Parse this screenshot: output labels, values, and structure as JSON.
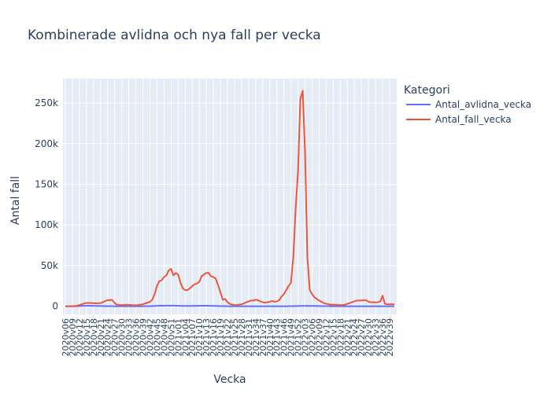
{
  "chart_data": {
    "type": "line",
    "title": "Kombinerade avlidna och nya fall per vecka",
    "xlabel": "Vecka",
    "ylabel": "Antal fall",
    "ylim": [
      -10000,
      280000
    ],
    "yticks": [
      0,
      50000,
      100000,
      150000,
      200000,
      250000
    ],
    "yticklabels": [
      "0",
      "50k",
      "100k",
      "150k",
      "200k",
      "250k"
    ],
    "legend": {
      "title": "Kategori",
      "placement": "right"
    },
    "grid": true,
    "x_start": {
      "year": 2020,
      "week": 6
    },
    "x_count": 141,
    "series": [
      {
        "name": "Antal_avlidna_vecka",
        "color": "#636efa",
        "values": [
          0,
          1,
          2,
          5,
          20,
          120,
          300,
          450,
          600,
          650,
          600,
          550,
          500,
          420,
          350,
          300,
          250,
          200,
          150,
          120,
          90,
          70,
          50,
          40,
          30,
          25,
          20,
          20,
          20,
          20,
          25,
          30,
          40,
          60,
          100,
          150,
          200,
          280,
          380,
          500,
          600,
          700,
          650,
          700,
          750,
          800,
          700,
          600,
          550,
          500,
          450,
          400,
          380,
          400,
          450,
          500,
          520,
          550,
          600,
          650,
          620,
          560,
          500,
          420,
          350,
          280,
          200,
          150,
          100,
          70,
          50,
          40,
          30,
          25,
          20,
          20,
          20,
          25,
          30,
          35,
          40,
          45,
          50,
          50,
          45,
          40,
          35,
          30,
          30,
          35,
          40,
          45,
          50,
          60,
          70,
          100,
          150,
          200,
          250,
          300,
          350,
          400,
          450,
          500,
          450,
          400,
          350,
          300,
          250,
          200,
          150,
          120,
          100,
          80,
          60,
          50,
          40,
          35,
          30,
          30,
          30,
          35,
          40,
          45,
          50,
          50,
          50,
          50,
          45,
          40,
          40,
          40,
          40,
          40,
          40,
          40,
          40,
          40,
          40,
          40,
          40
        ]
      },
      {
        "name": "Antal_fall_vecka",
        "color": "#ef553b",
        "values": [
          1,
          1,
          2,
          20,
          300,
          800,
          1500,
          2500,
          3500,
          4000,
          4000,
          4000,
          3800,
          3500,
          3600,
          4000,
          5000,
          6500,
          7500,
          7800,
          7700,
          4000,
          2000,
          1500,
          1500,
          1500,
          1800,
          1800,
          1500,
          1200,
          1200,
          1500,
          2000,
          2500,
          3500,
          4500,
          5500,
          8000,
          15000,
          25000,
          31000,
          32000,
          36000,
          38000,
          44000,
          46000,
          38000,
          41000,
          39000,
          29000,
          22000,
          20000,
          20000,
          22000,
          25000,
          27000,
          28000,
          30000,
          37000,
          39000,
          41000,
          41000,
          37000,
          36000,
          34000,
          26000,
          17000,
          8000,
          9000,
          5000,
          3000,
          2000,
          1500,
          1500,
          2000,
          2500,
          3500,
          5000,
          6000,
          7000,
          7000,
          8000,
          7500,
          6000,
          5000,
          4500,
          5000,
          5500,
          6500,
          5500,
          6000,
          7500,
          12000,
          15000,
          20000,
          25000,
          29000,
          60000,
          120000,
          165000,
          255000,
          265000,
          190000,
          60000,
          20000,
          15000,
          11000,
          9000,
          7000,
          5500,
          4000,
          3000,
          2500,
          2000,
          2000,
          1800,
          1500,
          1500,
          1500,
          2000,
          3000,
          4000,
          5000,
          6000,
          7000,
          7000,
          7200,
          7500,
          7500,
          5500,
          5000,
          5000,
          4800,
          5000,
          6000,
          13000,
          3000,
          2500,
          2500,
          2500,
          2500
        ]
      }
    ]
  }
}
